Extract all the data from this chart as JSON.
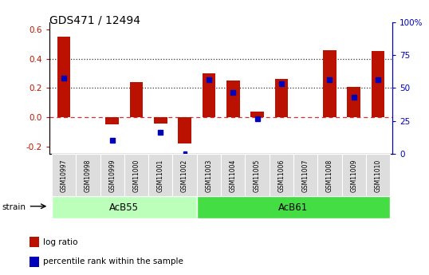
{
  "title": "GDS471 / 12494",
  "samples": [
    "GSM10997",
    "GSM10998",
    "GSM10999",
    "GSM11000",
    "GSM11001",
    "GSM11002",
    "GSM11003",
    "GSM11004",
    "GSM11005",
    "GSM11006",
    "GSM11007",
    "GSM11008",
    "GSM11009",
    "GSM11010"
  ],
  "log_ratio": [
    0.55,
    0.0,
    -0.05,
    0.24,
    -0.04,
    -0.18,
    0.3,
    0.25,
    0.04,
    0.26,
    0.0,
    0.46,
    0.21,
    0.45
  ],
  "percentile_rank_pct": [
    57.5,
    0.0,
    10.5,
    0.0,
    16.5,
    0.5,
    56.5,
    46.5,
    26.5,
    53.5,
    0.0,
    56.5,
    43.0,
    56.5
  ],
  "strain_groups": [
    {
      "label": "AcB55",
      "start": 0,
      "end": 5,
      "color": "#bbffbb"
    },
    {
      "label": "AcB61",
      "start": 6,
      "end": 13,
      "color": "#44dd44"
    }
  ],
  "bar_color": "#bb1100",
  "dot_color": "#0000bb",
  "ylim_left": [
    -0.25,
    0.65
  ],
  "ylim_right": [
    0,
    100
  ],
  "yticks_left": [
    -0.2,
    0.0,
    0.2,
    0.4,
    0.6
  ],
  "yticks_right": [
    0,
    25,
    50,
    75,
    100
  ],
  "ytick_right_labels": [
    "0",
    "25",
    "50",
    "75",
    "100%"
  ],
  "zero_line_color": "#cc3333",
  "dotted_line_color": "#333333",
  "strain_label": "strain",
  "legend_items": [
    {
      "color": "#bb1100",
      "label": "log ratio"
    },
    {
      "color": "#0000bb",
      "label": "percentile rank within the sample"
    }
  ]
}
